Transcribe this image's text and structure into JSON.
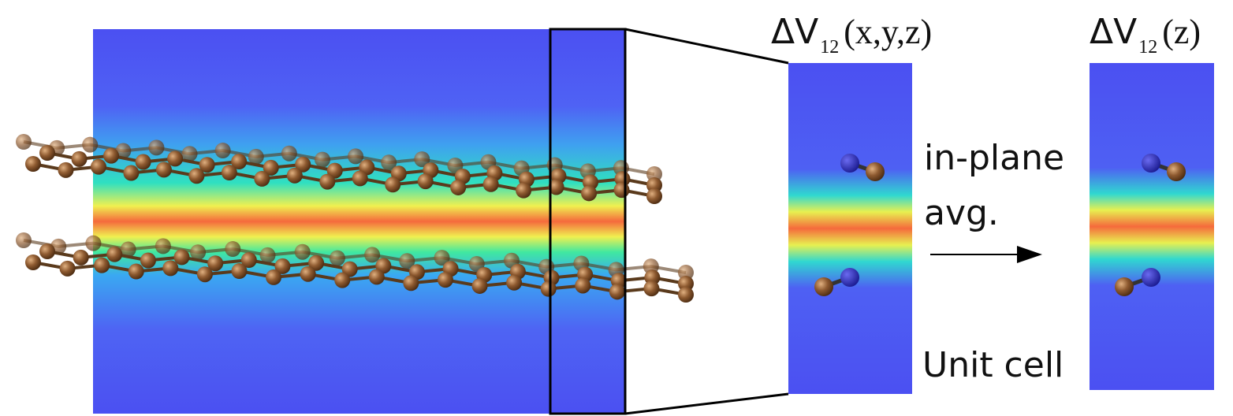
{
  "panels": [
    {
      "label": {
        "symbol": "ΔV",
        "subscript": "12",
        "args": "(x,y,z)"
      }
    },
    {
      "label": {
        "symbol": "ΔV",
        "subscript": "12",
        "args": "(z)"
      }
    }
  ],
  "arrow": {
    "label_lines": [
      "in-plane",
      "avg."
    ]
  },
  "caption": "Unit cell"
}
